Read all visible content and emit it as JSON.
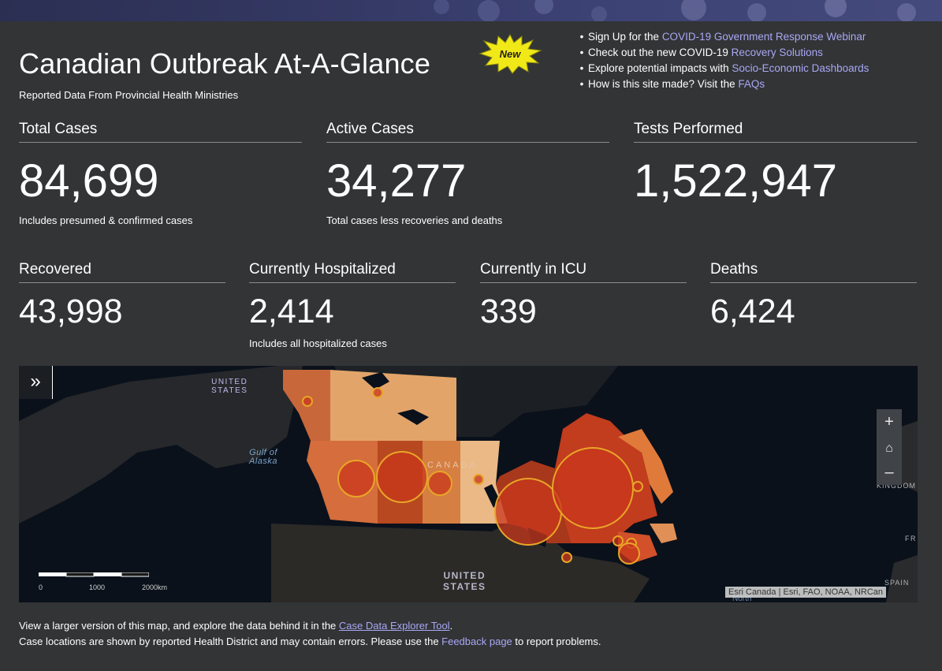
{
  "header": {
    "title": "Canadian Outbreak At-A-Glance",
    "subtitle": "Reported Data From Provincial Health Ministries",
    "new_badge": "New"
  },
  "links": [
    {
      "text": "Sign Up for the ",
      "link": "COVID-19 Government Response Webinar"
    },
    {
      "text": "Check out the new COVID-19 ",
      "link": "Recovery Solutions"
    },
    {
      "text": "Explore potential impacts with ",
      "link": "Socio-Economic Dashboards"
    },
    {
      "text": "How is this site made? Visit the ",
      "link": "FAQs"
    }
  ],
  "stats_top": [
    {
      "label": "Total Cases",
      "value": "84,699",
      "note": "Includes presumed & confirmed cases"
    },
    {
      "label": "Active Cases",
      "value": "34,277",
      "note": "Total cases less recoveries and deaths"
    },
    {
      "label": "Tests Performed",
      "value": "1,522,947",
      "note": ""
    }
  ],
  "stats_bottom": [
    {
      "label": "Recovered",
      "value": "43,998",
      "note": ""
    },
    {
      "label": "Currently Hospitalized",
      "value": "2,414",
      "note": "Includes all hospitalized cases"
    },
    {
      "label": "Currently in ICU",
      "value": "339",
      "note": ""
    },
    {
      "label": "Deaths",
      "value": "6,424",
      "note": ""
    }
  ],
  "map": {
    "expand_icon": "»",
    "zoom_in": "+",
    "home_icon": "⌂",
    "zoom_out": "–",
    "labels": {
      "us_north": "UNITED\nSTATES",
      "gulf": "Gulf of\nAlaska",
      "canada": "CANADA",
      "us_south": "UNITED\nSTATES",
      "uk": "ED\nKINGDOM",
      "fr": "FR",
      "spain": "SPAIN",
      "north": "North"
    },
    "scale_labels": [
      "0",
      "1000",
      "2000km"
    ],
    "attribution": "Esri Canada | Esri, FAO, NOAA, NRCan"
  },
  "footer": {
    "line1_pre": "View a larger version of this map, and explore the data behind it in the ",
    "line1_link": "Case Data Explorer Tool",
    "line1_post": ".",
    "line2_pre": "Case locations are shown by reported Health District and may contain errors. Please use the ",
    "line2_link": "Feedback page",
    "line2_post": " to report problems."
  },
  "colors": {
    "background": "#323436",
    "link": "#a9a8f5",
    "map_bg": "#0a111b",
    "circle_fill": "#c8371c",
    "circle_stroke": "#e8a528"
  }
}
